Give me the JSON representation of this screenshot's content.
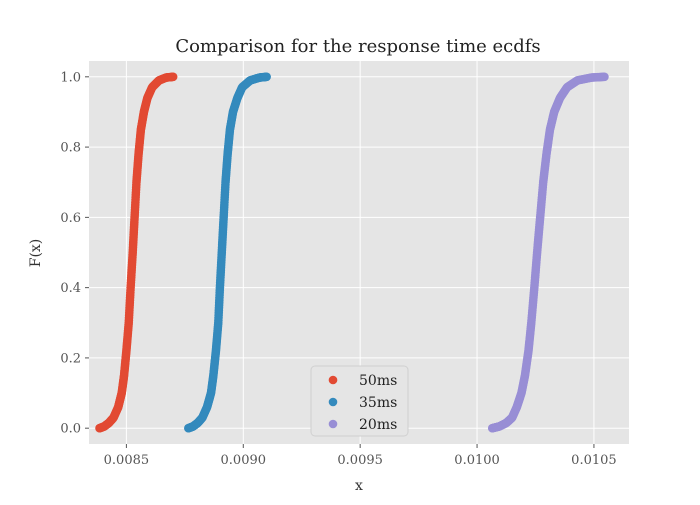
{
  "chart_data": {
    "type": "scatter",
    "title": "Comparison for the response time ecdfs",
    "xlabel": "x",
    "ylabel": "F(x)",
    "xlim": [
      0.00834,
      0.01065
    ],
    "ylim": [
      -0.045,
      1.045
    ],
    "x_ticks": [
      {
        "value": 0.0085,
        "label": "0.0085"
      },
      {
        "value": 0.009,
        "label": "0.0090"
      },
      {
        "value": 0.0095,
        "label": "0.0095"
      },
      {
        "value": 0.01,
        "label": "0.0100"
      },
      {
        "value": 0.0105,
        "label": "0.0105"
      }
    ],
    "y_ticks": [
      {
        "value": 0.0,
        "label": "0.0"
      },
      {
        "value": 0.2,
        "label": "0.2"
      },
      {
        "value": 0.4,
        "label": "0.4"
      },
      {
        "value": 0.6,
        "label": "0.6"
      },
      {
        "value": 0.8,
        "label": "0.8"
      },
      {
        "value": 1.0,
        "label": "1.0"
      }
    ],
    "grid": true,
    "legend_position": "lower-center",
    "background": "#e5e5e5",
    "series": [
      {
        "name": "50ms",
        "color": "#e24a33",
        "points": [
          [
            0.008385,
            0.0
          ],
          [
            0.008405,
            0.005
          ],
          [
            0.008425,
            0.015
          ],
          [
            0.008445,
            0.03
          ],
          [
            0.008465,
            0.06
          ],
          [
            0.00848,
            0.1
          ],
          [
            0.00849,
            0.15
          ],
          [
            0.0085,
            0.22
          ],
          [
            0.00851,
            0.3
          ],
          [
            0.008518,
            0.4
          ],
          [
            0.008527,
            0.5
          ],
          [
            0.008535,
            0.6
          ],
          [
            0.008543,
            0.7
          ],
          [
            0.008552,
            0.78
          ],
          [
            0.008562,
            0.85
          ],
          [
            0.008575,
            0.9
          ],
          [
            0.00859,
            0.94
          ],
          [
            0.00861,
            0.97
          ],
          [
            0.00864,
            0.99
          ],
          [
            0.00867,
            0.998
          ],
          [
            0.0087,
            1.0
          ]
        ]
      },
      {
        "name": "35ms",
        "color": "#348abd",
        "points": [
          [
            0.008765,
            0.0
          ],
          [
            0.008785,
            0.005
          ],
          [
            0.008805,
            0.015
          ],
          [
            0.008825,
            0.03
          ],
          [
            0.008845,
            0.06
          ],
          [
            0.008862,
            0.1
          ],
          [
            0.008872,
            0.15
          ],
          [
            0.008883,
            0.22
          ],
          [
            0.008893,
            0.3
          ],
          [
            0.0089,
            0.4
          ],
          [
            0.008908,
            0.5
          ],
          [
            0.008916,
            0.6
          ],
          [
            0.008924,
            0.7
          ],
          [
            0.008933,
            0.78
          ],
          [
            0.008943,
            0.85
          ],
          [
            0.008956,
            0.9
          ],
          [
            0.008975,
            0.94
          ],
          [
            0.008995,
            0.97
          ],
          [
            0.00903,
            0.99
          ],
          [
            0.00907,
            0.998
          ],
          [
            0.0091,
            1.0
          ]
        ]
      },
      {
        "name": "20ms",
        "color": "#988ed5",
        "points": [
          [
            0.010065,
            0.0
          ],
          [
            0.010095,
            0.005
          ],
          [
            0.010125,
            0.015
          ],
          [
            0.01015,
            0.03
          ],
          [
            0.01017,
            0.06
          ],
          [
            0.01019,
            0.1
          ],
          [
            0.010205,
            0.15
          ],
          [
            0.01022,
            0.22
          ],
          [
            0.010232,
            0.3
          ],
          [
            0.010245,
            0.4
          ],
          [
            0.010257,
            0.5
          ],
          [
            0.01027,
            0.6
          ],
          [
            0.010283,
            0.7
          ],
          [
            0.010297,
            0.78
          ],
          [
            0.010312,
            0.85
          ],
          [
            0.01033,
            0.9
          ],
          [
            0.010355,
            0.94
          ],
          [
            0.010385,
            0.97
          ],
          [
            0.01043,
            0.99
          ],
          [
            0.01049,
            0.998
          ],
          [
            0.010545,
            1.0
          ]
        ]
      }
    ]
  }
}
